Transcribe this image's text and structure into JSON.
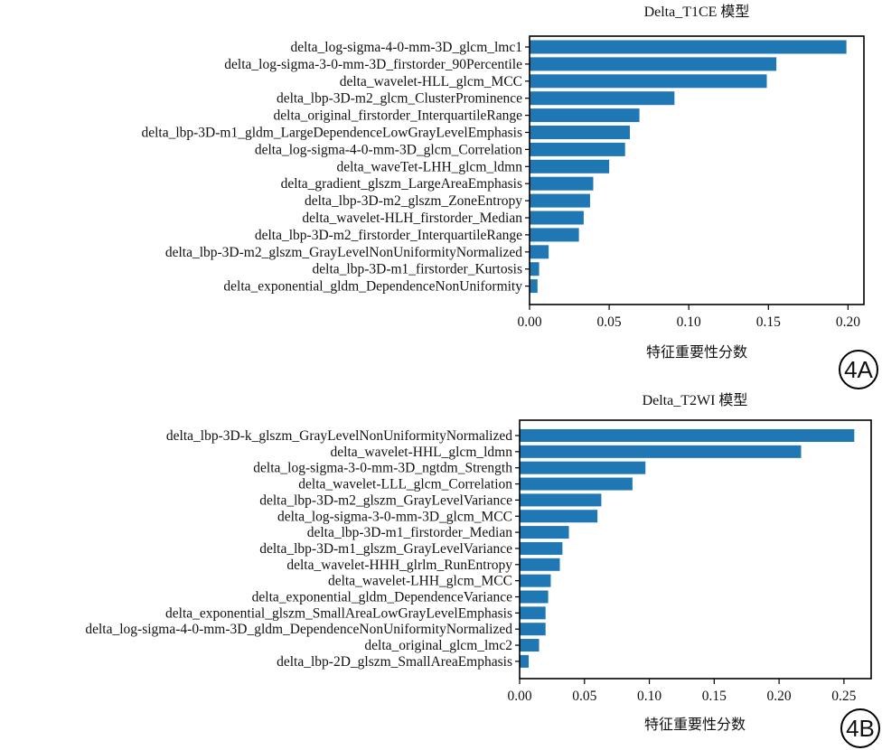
{
  "chart_data": [
    {
      "type": "bar",
      "orientation": "horizontal",
      "title": "Delta_T1CE 模型",
      "xlabel": "特征重要性分数",
      "panel_label": "4A",
      "xlim": [
        0,
        0.21
      ],
      "xticks": [
        "0.00",
        "0.05",
        "0.10",
        "0.15",
        "0.20"
      ],
      "xtick_values": [
        0,
        0.05,
        0.1,
        0.15,
        0.2
      ],
      "bar_color": "#1f77b4",
      "categories": [
        "delta_log-sigma-4-0-mm-3D_glcm_lmc1",
        "delta_log-sigma-3-0-mm-3D_firstorder_90Percentile",
        "delta_wavelet-HLL_glcm_MCC",
        "delta_lbp-3D-m2_glcm_ClusterProminence",
        "delta_original_firstorder_InterquartileRange",
        "delta_lbp-3D-m1_gldm_LargeDependenceLowGrayLevelEmphasis",
        "delta_log-sigma-4-0-mm-3D_glcm_Correlation",
        "delta_waveTet-LHH_glcm_ldmn",
        "delta_gradient_glszm_LargeAreaEmphasis",
        "delta_lbp-3D-m2_glszm_ZoneEntropy",
        "delta_wavelet-HLH_firstorder_Median",
        "delta_lbp-3D-m2_firstorder_InterquartileRange",
        "delta_lbp-3D-m2_glszm_GrayLevelNonUniformityNormalized",
        "delta_lbp-3D-m1_firstorder_Kurtosis",
        "delta_exponential_gldm_DependenceNonUniformity"
      ],
      "values": [
        0.199,
        0.155,
        0.149,
        0.091,
        0.069,
        0.063,
        0.06,
        0.05,
        0.04,
        0.038,
        0.034,
        0.031,
        0.012,
        0.006,
        0.005
      ]
    },
    {
      "type": "bar",
      "orientation": "horizontal",
      "title": "Delta_T2WI 模型",
      "xlabel": "特征重要性分数",
      "panel_label": "4B",
      "xlim": [
        0,
        0.271
      ],
      "xticks": [
        "0.00",
        "0.05",
        "0.10",
        "0.15",
        "0.20",
        "0.25"
      ],
      "xtick_values": [
        0,
        0.05,
        0.1,
        0.15,
        0.2,
        0.25
      ],
      "bar_color": "#1f77b4",
      "categories": [
        "delta_lbp-3D-k_glszm_GrayLevelNonUniformityNormalized",
        "delta_wavelet-HHL_glcm_ldmn",
        "delta_log-sigma-3-0-mm-3D_ngtdm_Strength",
        "delta_wavelet-LLL_glcm_Correlation",
        "delta_lbp-3D-m2_glszm_GrayLevelVariance",
        "delta_log-sigma-3-0-mm-3D_glcm_MCC",
        "delta_lbp-3D-m1_firstorder_Median",
        "delta_lbp-3D-m1_glszm_GrayLevelVariance",
        "delta_wavelet-HHH_glrlm_RunEntropy",
        "delta_wavelet-LHH_glcm_MCC",
        "delta_exponential_gldm_DependenceVariance",
        "delta_exponential_glszm_SmallAreaLowGrayLevelEmphasis",
        "delta_log-sigma-4-0-mm-3D_gldm_DependenceNonUniformityNormalized",
        "delta_original_glcm_lmc2",
        "delta_lbp-2D_glszm_SmallAreaEmphasis"
      ],
      "values": [
        0.258,
        0.217,
        0.097,
        0.087,
        0.063,
        0.06,
        0.038,
        0.033,
        0.031,
        0.024,
        0.022,
        0.02,
        0.02,
        0.015,
        0.007
      ]
    }
  ]
}
